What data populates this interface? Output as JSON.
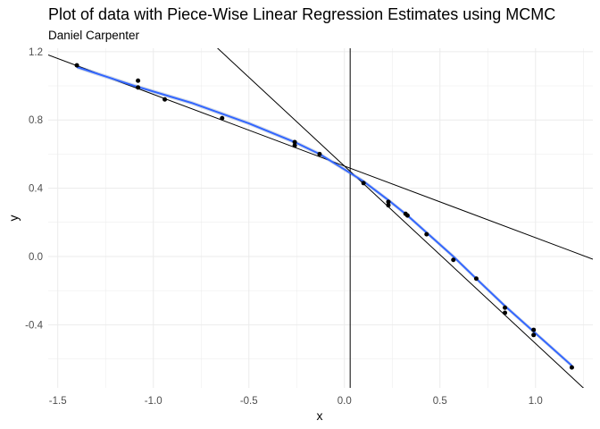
{
  "chart_data": {
    "type": "scatter",
    "title": "Plot of data with Piece-Wise Linear Regression Estimates using MCMC",
    "subtitle": "Daniel Carpenter",
    "xlabel": "x",
    "ylabel": "y",
    "xlim": [
      -1.55,
      1.3
    ],
    "ylim": [
      -0.77,
      1.22
    ],
    "x_ticks": [
      -1.5,
      -1.0,
      -0.5,
      0.0,
      0.5,
      1.0
    ],
    "x_tick_labels": [
      "-1.5",
      "-1.0",
      "-0.5",
      "0.0",
      "0.5",
      "1.0"
    ],
    "y_ticks": [
      -0.4,
      0.0,
      0.4,
      0.8,
      1.2
    ],
    "y_tick_labels": [
      "-0.4",
      "0.0",
      "0.4",
      "0.8",
      "1.2"
    ],
    "grid": true,
    "points": {
      "x": [
        -1.4,
        -1.08,
        -1.08,
        -0.94,
        -0.64,
        -0.26,
        -0.26,
        -0.13,
        0.1,
        0.23,
        0.23,
        0.32,
        0.33,
        0.43,
        0.57,
        0.69,
        0.84,
        0.84,
        0.99,
        0.99,
        1.19
      ],
      "y": [
        1.12,
        1.03,
        0.99,
        0.92,
        0.81,
        0.67,
        0.65,
        0.6,
        0.43,
        0.32,
        0.3,
        0.25,
        0.24,
        0.13,
        -0.02,
        -0.13,
        -0.3,
        -0.33,
        -0.43,
        -0.46,
        -0.65
      ]
    },
    "regression_lines": [
      {
        "intercept": 0.53,
        "slope": -0.42,
        "x_range": [
          -1.55,
          1.3
        ]
      },
      {
        "intercept": 0.53,
        "slope": -1.04,
        "x_range": [
          -0.7,
          1.3
        ]
      }
    ],
    "vertical_line": {
      "x": 0.03
    },
    "smooth": {
      "x": [
        -1.4,
        -1.1,
        -0.8,
        -0.5,
        -0.26,
        -0.13,
        0.0,
        0.1,
        0.23,
        0.33,
        0.43,
        0.57,
        0.69,
        0.84,
        0.99,
        1.19
      ],
      "y": [
        1.11,
        1.0,
        0.9,
        0.78,
        0.67,
        0.6,
        0.51,
        0.44,
        0.33,
        0.24,
        0.14,
        0.0,
        -0.13,
        -0.29,
        -0.44,
        -0.64
      ]
    },
    "colors": {
      "points": "#000000",
      "smooth": "#3366ff",
      "smooth_band": "#b8c4d8",
      "lines": "#000000",
      "grid": "#ebebeb"
    }
  }
}
